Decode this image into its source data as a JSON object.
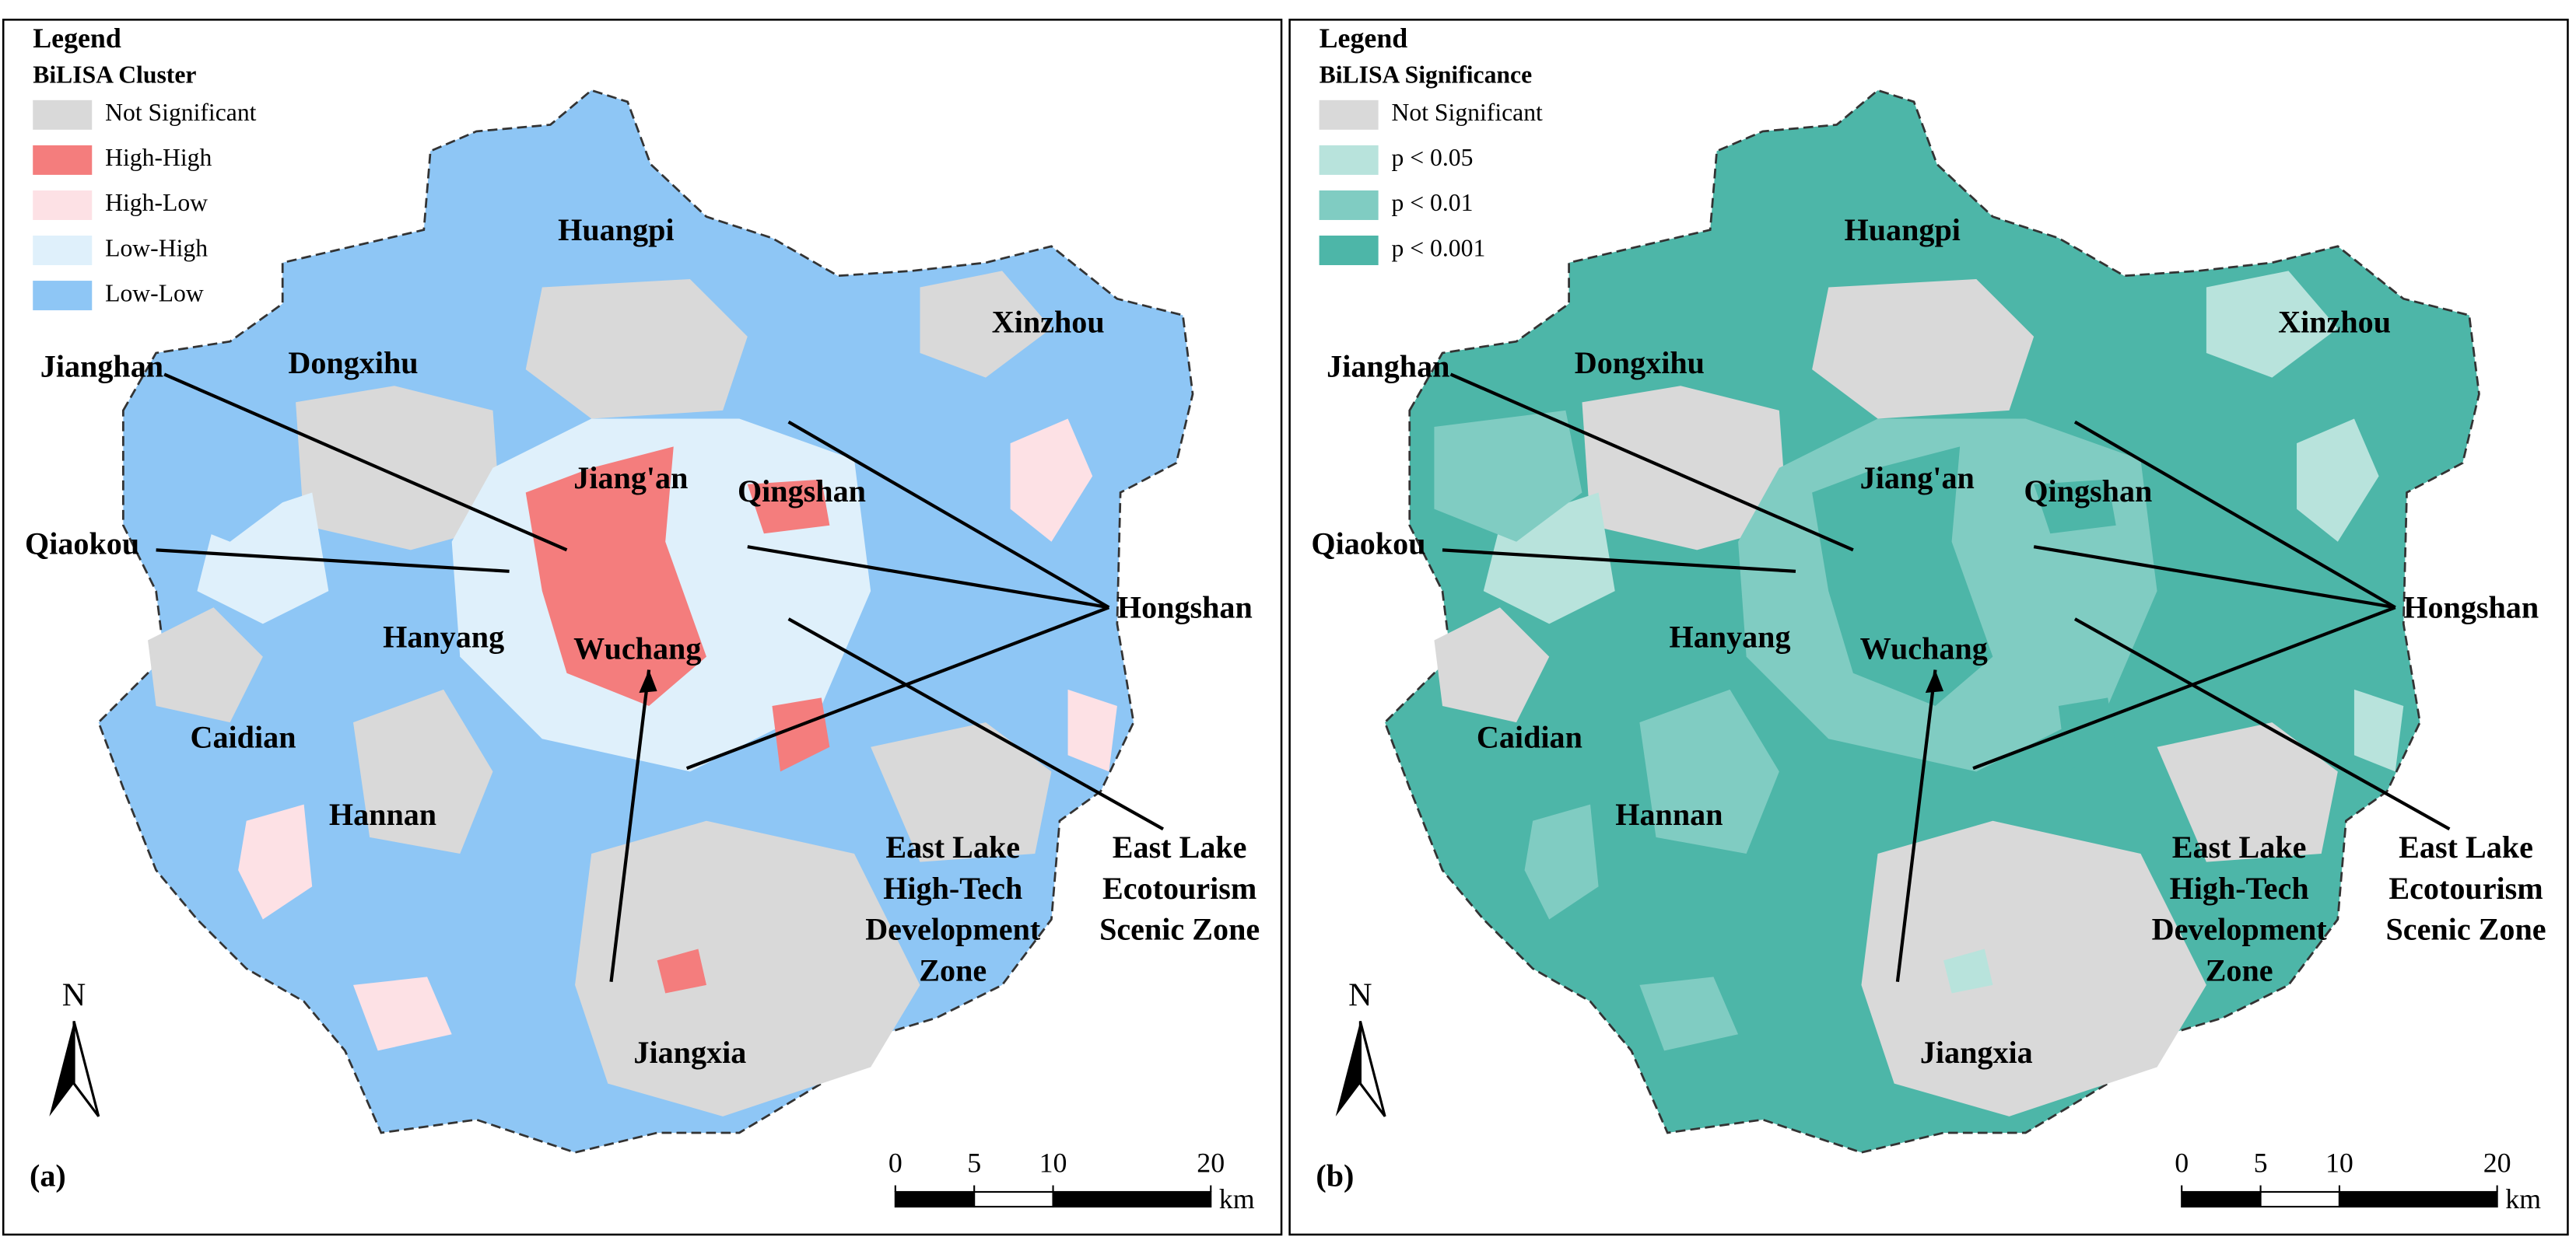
{
  "panels": [
    {
      "label": "(a)",
      "legend": {
        "title": "Legend",
        "subtitle": "BiLISA Cluster",
        "items": [
          {
            "label": "Not Significant",
            "color": "#d9d9d9"
          },
          {
            "label": "High-High",
            "color": "#f47d7d"
          },
          {
            "label": "High-Low",
            "color": "#fde1e5"
          },
          {
            "label": "Low-High",
            "color": "#dff0fb"
          },
          {
            "label": "Low-Low",
            "color": "#8ec6f5"
          }
        ]
      },
      "districts": [
        {
          "lines": [
            "Huangpi"
          ]
        },
        {
          "lines": [
            "Xinzhou"
          ]
        },
        {
          "lines": [
            "Dongxihu"
          ]
        },
        {
          "lines": [
            "Jianghan"
          ]
        },
        {
          "lines": [
            "Jiang'an"
          ]
        },
        {
          "lines": [
            "Qingshan"
          ]
        },
        {
          "lines": [
            "Qiaokou"
          ]
        },
        {
          "lines": [
            "Hongshan"
          ]
        },
        {
          "lines": [
            "Hanyang"
          ]
        },
        {
          "lines": [
            "Wuchang"
          ]
        },
        {
          "lines": [
            "Caidian"
          ]
        },
        {
          "lines": [
            "Hannan"
          ]
        },
        {
          "lines": [
            "East Lake",
            "High-Tech",
            "Development",
            "Zone"
          ]
        },
        {
          "lines": [
            "East Lake",
            "Ecotourism",
            "Scenic Zone"
          ]
        },
        {
          "lines": [
            "Jiangxia"
          ]
        }
      ],
      "north": "N",
      "scale_bar": {
        "ticks": [
          0,
          5,
          10,
          20
        ],
        "unit": "km"
      }
    },
    {
      "label": "(b)",
      "legend": {
        "title": "Legend",
        "subtitle": "BiLISA Significance",
        "items": [
          {
            "label": "Not Significant",
            "color": "#d9d9d9"
          },
          {
            "label": "p < 0.05",
            "color": "#b8e3dc"
          },
          {
            "label": "p < 0.01",
            "color": "#80ccc2"
          },
          {
            "label": "p < 0.001",
            "color": "#4db6a8"
          }
        ]
      },
      "districts": [
        {
          "lines": [
            "Huangpi"
          ]
        },
        {
          "lines": [
            "Xinzhou"
          ]
        },
        {
          "lines": [
            "Dongxihu"
          ]
        },
        {
          "lines": [
            "Jianghan"
          ]
        },
        {
          "lines": [
            "Jiang'an"
          ]
        },
        {
          "lines": [
            "Qingshan"
          ]
        },
        {
          "lines": [
            "Qiaokou"
          ]
        },
        {
          "lines": [
            "Hongshan"
          ]
        },
        {
          "lines": [
            "Hanyang"
          ]
        },
        {
          "lines": [
            "Wuchang"
          ]
        },
        {
          "lines": [
            "Caidian"
          ]
        },
        {
          "lines": [
            "Hannan"
          ]
        },
        {
          "lines": [
            "East Lake",
            "High-Tech",
            "Development",
            "Zone"
          ]
        },
        {
          "lines": [
            "East Lake",
            "Ecotourism",
            "Scenic Zone"
          ]
        },
        {
          "lines": [
            "Jiangxia"
          ]
        }
      ],
      "north": "N",
      "scale_bar": {
        "ticks": [
          0,
          5,
          10,
          20
        ],
        "unit": "km"
      }
    }
  ]
}
